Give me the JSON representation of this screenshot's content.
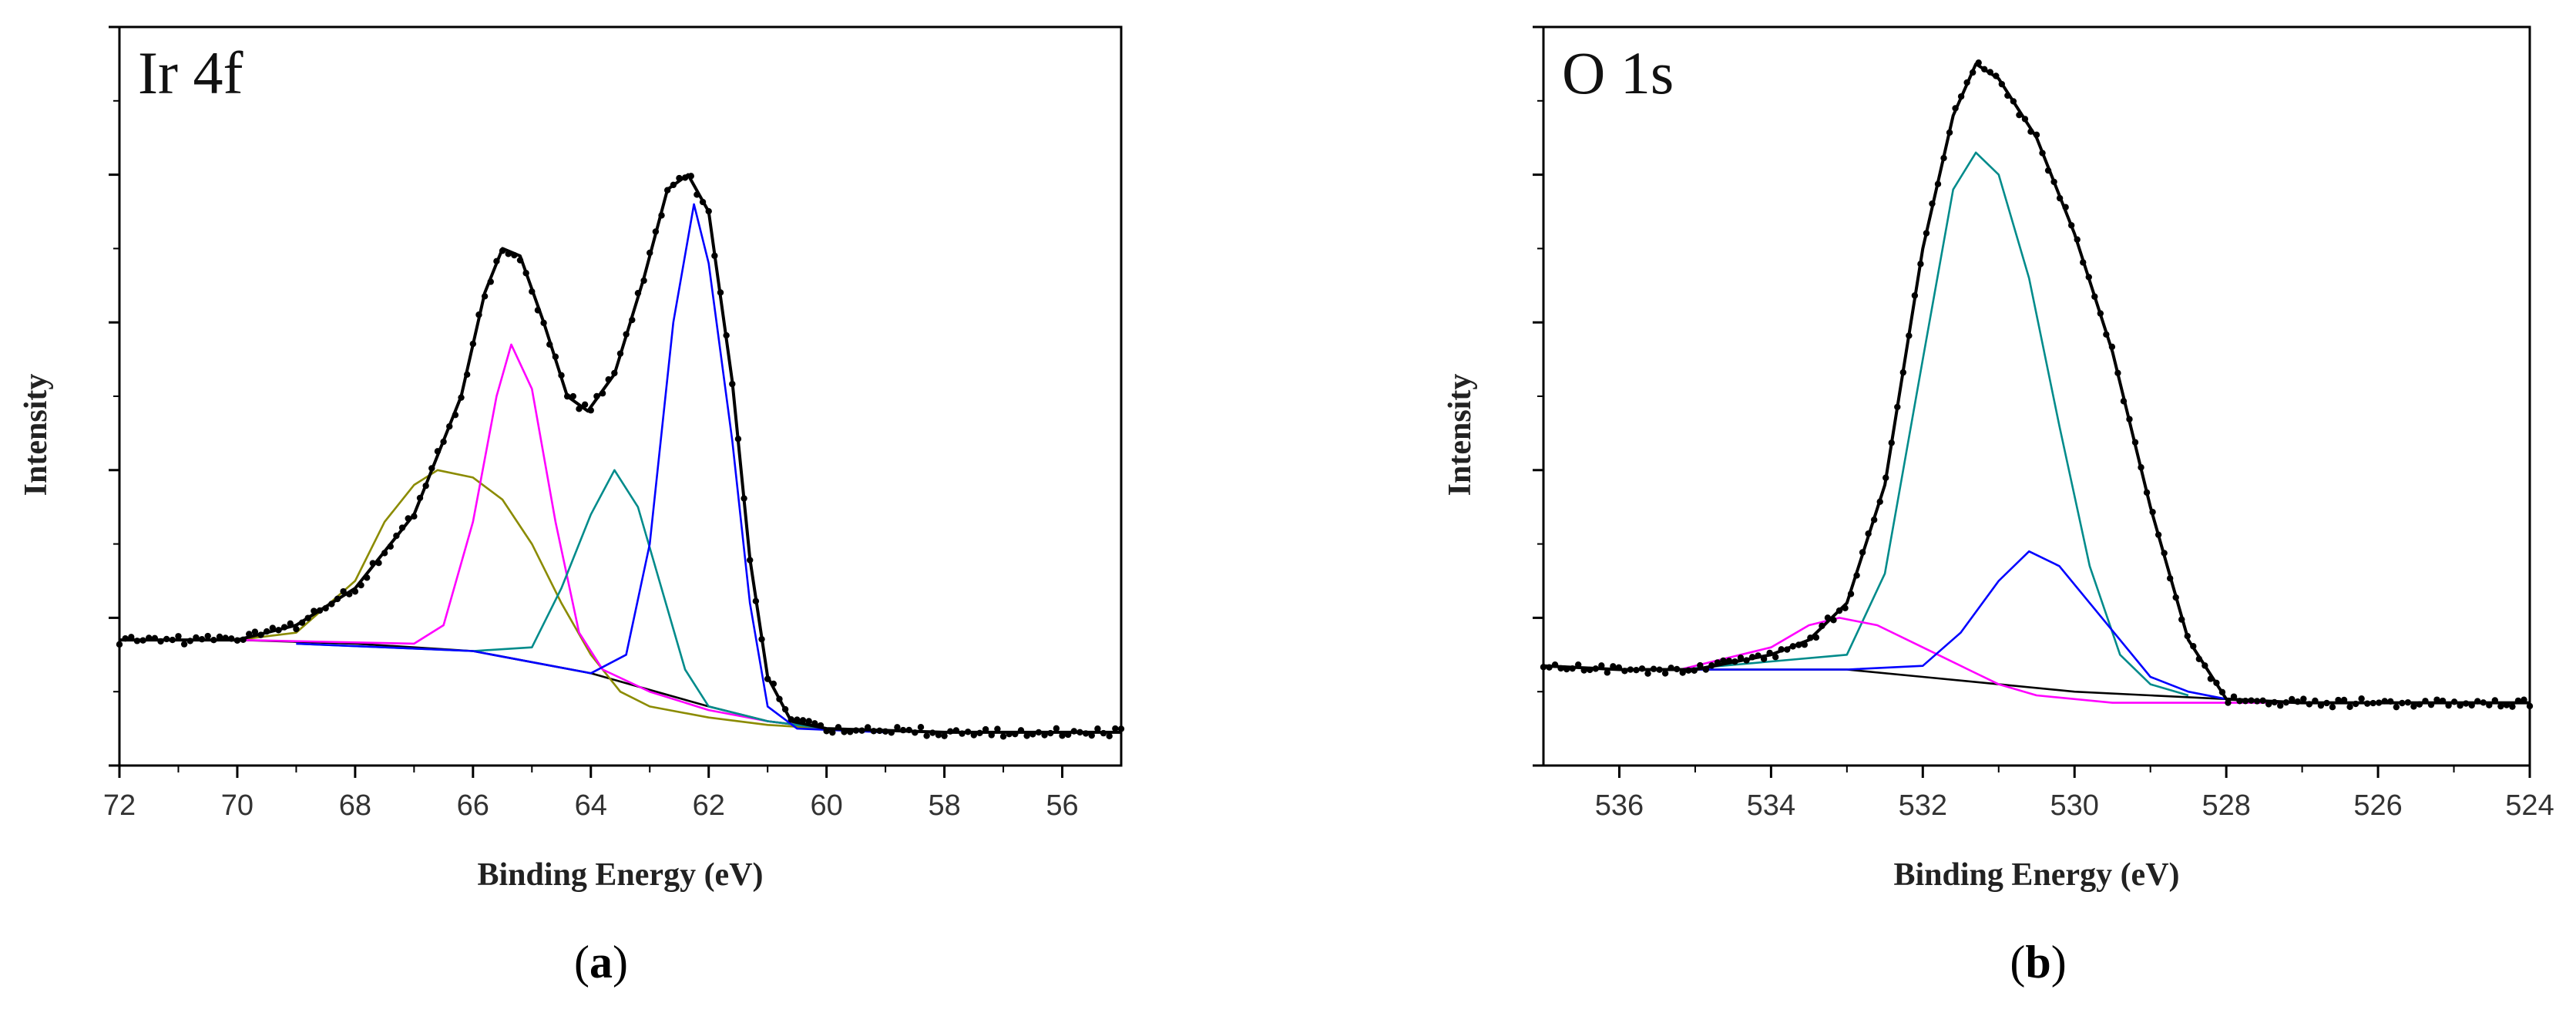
{
  "chart_data": [
    {
      "type": "line",
      "panel_label": "a",
      "title": "Ir 4f",
      "xlabel": "Binding Energy (eV)",
      "ylabel": "Intensity",
      "xlim": [
        72,
        55
      ],
      "ylim": [
        0,
        1
      ],
      "x_reversed": true,
      "xticks": [
        72,
        70,
        68,
        66,
        64,
        62,
        60,
        58,
        56
      ],
      "yticks": [
        0.0,
        0.2,
        0.4,
        0.6,
        0.8,
        1.0
      ],
      "y_minor_ticks": true,
      "grid": false,
      "legend": "none",
      "series": [
        {
          "color": "#000000",
          "kind": "raw-points",
          "points": [
            [
              72,
              0.17
            ],
            [
              70,
              0.17
            ],
            [
              69,
              0.19
            ],
            [
              68,
              0.24
            ],
            [
              67,
              0.34
            ],
            [
              66.2,
              0.5
            ],
            [
              65.8,
              0.64
            ],
            [
              65.5,
              0.7
            ],
            [
              65.2,
              0.69
            ],
            [
              64.8,
              0.6
            ],
            [
              64.4,
              0.5
            ],
            [
              64.05,
              0.48
            ],
            [
              63.6,
              0.53
            ],
            [
              63.1,
              0.66
            ],
            [
              62.7,
              0.78
            ],
            [
              62.35,
              0.8
            ],
            [
              62.0,
              0.75
            ],
            [
              61.6,
              0.52
            ],
            [
              61.3,
              0.28
            ],
            [
              61.0,
              0.12
            ],
            [
              60.6,
              0.06
            ],
            [
              60,
              0.05
            ],
            [
              58,
              0.045
            ],
            [
              56,
              0.045
            ],
            [
              55,
              0.045
            ]
          ]
        },
        {
          "color": "#000000",
          "kind": "envelope",
          "points": [
            [
              72,
              0.17
            ],
            [
              70,
              0.17
            ],
            [
              69,
              0.19
            ],
            [
              68,
              0.24
            ],
            [
              67,
              0.34
            ],
            [
              66.2,
              0.5
            ],
            [
              65.8,
              0.64
            ],
            [
              65.5,
              0.7
            ],
            [
              65.2,
              0.69
            ],
            [
              64.8,
              0.6
            ],
            [
              64.4,
              0.5
            ],
            [
              64.05,
              0.48
            ],
            [
              63.6,
              0.53
            ],
            [
              63.1,
              0.66
            ],
            [
              62.7,
              0.78
            ],
            [
              62.35,
              0.8
            ],
            [
              62.0,
              0.75
            ],
            [
              61.6,
              0.52
            ],
            [
              61.3,
              0.28
            ],
            [
              61.0,
              0.12
            ],
            [
              60.6,
              0.06
            ],
            [
              60,
              0.05
            ],
            [
              58,
              0.045
            ],
            [
              56,
              0.045
            ],
            [
              55,
              0.045
            ]
          ]
        },
        {
          "color": "#000000",
          "kind": "background",
          "points": [
            [
              70,
              0.17
            ],
            [
              68,
              0.165
            ],
            [
              66,
              0.155
            ],
            [
              64,
              0.125
            ],
            [
              62,
              0.08
            ],
            [
              61,
              0.06
            ],
            [
              60,
              0.05
            ],
            [
              59,
              0.045
            ]
          ]
        },
        {
          "color": "#8b8b00",
          "kind": "component",
          "points": [
            [
              72,
              0.17
            ],
            [
              70,
              0.17
            ],
            [
              69,
              0.18
            ],
            [
              68,
              0.25
            ],
            [
              67.5,
              0.33
            ],
            [
              67,
              0.38
            ],
            [
              66.6,
              0.4
            ],
            [
              66,
              0.39
            ],
            [
              65.5,
              0.36
            ],
            [
              65,
              0.3
            ],
            [
              64.5,
              0.22
            ],
            [
              64,
              0.15
            ],
            [
              63.5,
              0.1
            ],
            [
              63,
              0.08
            ],
            [
              62,
              0.065
            ],
            [
              61,
              0.055
            ],
            [
              60,
              0.05
            ],
            [
              59,
              0.045
            ]
          ]
        },
        {
          "color": "#ff00ff",
          "kind": "component",
          "points": [
            [
              70,
              0.17
            ],
            [
              67,
              0.165
            ],
            [
              66.5,
              0.19
            ],
            [
              66,
              0.33
            ],
            [
              65.6,
              0.5
            ],
            [
              65.35,
              0.57
            ],
            [
              65,
              0.51
            ],
            [
              64.6,
              0.33
            ],
            [
              64.2,
              0.18
            ],
            [
              63.8,
              0.13
            ],
            [
              63,
              0.1
            ],
            [
              62,
              0.075
            ],
            [
              61,
              0.06
            ],
            [
              60,
              0.05
            ],
            [
              59,
              0.045
            ]
          ]
        },
        {
          "color": "#008b8b",
          "kind": "component",
          "points": [
            [
              69,
              0.165
            ],
            [
              66,
              0.155
            ],
            [
              65,
              0.16
            ],
            [
              64.5,
              0.24
            ],
            [
              64,
              0.34
            ],
            [
              63.6,
              0.4
            ],
            [
              63.2,
              0.35
            ],
            [
              62.8,
              0.24
            ],
            [
              62.4,
              0.13
            ],
            [
              62,
              0.08
            ],
            [
              61,
              0.06
            ],
            [
              60,
              0.05
            ],
            [
              59,
              0.045
            ]
          ]
        },
        {
          "color": "#0000ff",
          "kind": "component",
          "points": [
            [
              69,
              0.165
            ],
            [
              66,
              0.155
            ],
            [
              64,
              0.125
            ],
            [
              63.4,
              0.15
            ],
            [
              63,
              0.3
            ],
            [
              62.6,
              0.6
            ],
            [
              62.25,
              0.76
            ],
            [
              62.0,
              0.68
            ],
            [
              61.6,
              0.44
            ],
            [
              61.3,
              0.22
            ],
            [
              61,
              0.08
            ],
            [
              60.5,
              0.05
            ],
            [
              59,
              0.045
            ]
          ]
        }
      ]
    },
    {
      "type": "line",
      "panel_label": "b",
      "title": "O 1s",
      "xlabel": "Binding Energy (eV)",
      "ylabel": "Intensity",
      "xlim": [
        537,
        524
      ],
      "ylim": [
        0,
        1
      ],
      "x_reversed": true,
      "xticks": [
        536,
        534,
        532,
        530,
        528,
        526,
        524
      ],
      "yticks": [
        0.0,
        0.2,
        0.4,
        0.6,
        0.8,
        1.0
      ],
      "y_minor_ticks": true,
      "grid": false,
      "legend": "none",
      "series": [
        {
          "color": "#000000",
          "kind": "raw-points",
          "points": [
            [
              537,
              0.135
            ],
            [
              536,
              0.13
            ],
            [
              535,
              0.13
            ],
            [
              534,
              0.15
            ],
            [
              533.5,
              0.17
            ],
            [
              533,
              0.22
            ],
            [
              532.5,
              0.38
            ],
            [
              532,
              0.7
            ],
            [
              531.6,
              0.88
            ],
            [
              531.3,
              0.95
            ],
            [
              531.0,
              0.93
            ],
            [
              530.5,
              0.85
            ],
            [
              530,
              0.72
            ],
            [
              529.5,
              0.56
            ],
            [
              529,
              0.35
            ],
            [
              528.5,
              0.17
            ],
            [
              528,
              0.09
            ],
            [
              527,
              0.085
            ],
            [
              526,
              0.085
            ],
            [
              525,
              0.085
            ],
            [
              524,
              0.085
            ]
          ]
        },
        {
          "color": "#000000",
          "kind": "envelope",
          "points": [
            [
              537,
              0.135
            ],
            [
              536,
              0.13
            ],
            [
              535,
              0.13
            ],
            [
              534,
              0.15
            ],
            [
              533.5,
              0.17
            ],
            [
              533,
              0.22
            ],
            [
              532.5,
              0.38
            ],
            [
              532,
              0.7
            ],
            [
              531.6,
              0.88
            ],
            [
              531.3,
              0.95
            ],
            [
              531.0,
              0.93
            ],
            [
              530.5,
              0.85
            ],
            [
              530,
              0.72
            ],
            [
              529.5,
              0.56
            ],
            [
              529,
              0.35
            ],
            [
              528.5,
              0.17
            ],
            [
              528,
              0.09
            ],
            [
              527,
              0.085
            ],
            [
              526,
              0.085
            ],
            [
              525,
              0.085
            ],
            [
              524,
              0.085
            ]
          ]
        },
        {
          "color": "#000000",
          "kind": "background",
          "points": [
            [
              535.2,
              0.13
            ],
            [
              533,
              0.13
            ],
            [
              532,
              0.12
            ],
            [
              531,
              0.11
            ],
            [
              530,
              0.1
            ],
            [
              529,
              0.095
            ],
            [
              528,
              0.09
            ]
          ]
        },
        {
          "color": "#008b8b",
          "kind": "component",
          "points": [
            [
              535.2,
              0.13
            ],
            [
              533,
              0.15
            ],
            [
              532.5,
              0.26
            ],
            [
              532,
              0.55
            ],
            [
              531.6,
              0.78
            ],
            [
              531.3,
              0.83
            ],
            [
              531.0,
              0.8
            ],
            [
              530.6,
              0.66
            ],
            [
              530.2,
              0.46
            ],
            [
              529.8,
              0.27
            ],
            [
              529.4,
              0.15
            ],
            [
              529,
              0.11
            ],
            [
              528.5,
              0.095
            ]
          ]
        },
        {
          "color": "#ff00ff",
          "kind": "component",
          "points": [
            [
              535.2,
              0.13
            ],
            [
              534,
              0.16
            ],
            [
              533.5,
              0.19
            ],
            [
              533.1,
              0.2
            ],
            [
              532.6,
              0.19
            ],
            [
              532,
              0.16
            ],
            [
              531.4,
              0.13
            ],
            [
              531,
              0.11
            ],
            [
              530.5,
              0.095
            ],
            [
              529.5,
              0.085
            ],
            [
              528,
              0.085
            ],
            [
              526,
              0.085
            ],
            [
              525,
              0.085
            ]
          ]
        },
        {
          "color": "#0000ff",
          "kind": "component",
          "points": [
            [
              535,
              0.13
            ],
            [
              533,
              0.13
            ],
            [
              532,
              0.135
            ],
            [
              531.5,
              0.18
            ],
            [
              531,
              0.25
            ],
            [
              530.6,
              0.29
            ],
            [
              530.2,
              0.27
            ],
            [
              529.8,
              0.22
            ],
            [
              529.4,
              0.17
            ],
            [
              529,
              0.12
            ],
            [
              528.5,
              0.1
            ],
            [
              528,
              0.09
            ]
          ]
        }
      ]
    }
  ]
}
